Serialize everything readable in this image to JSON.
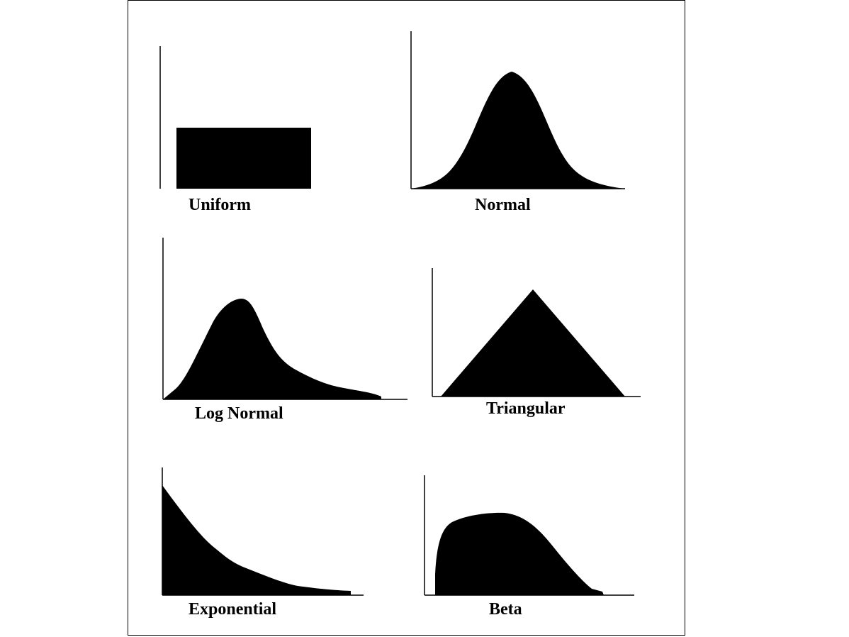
{
  "panels": {
    "uniform": {
      "label": "Uniform"
    },
    "normal": {
      "label": "Normal"
    },
    "lognormal": {
      "label": "Log Normal"
    },
    "triangular": {
      "label": "Triangular"
    },
    "exponential": {
      "label": "Exponential"
    },
    "beta": {
      "label": "Beta"
    }
  },
  "colors": {
    "fill": "#000000",
    "axis": "#000000",
    "background": "#ffffff"
  }
}
